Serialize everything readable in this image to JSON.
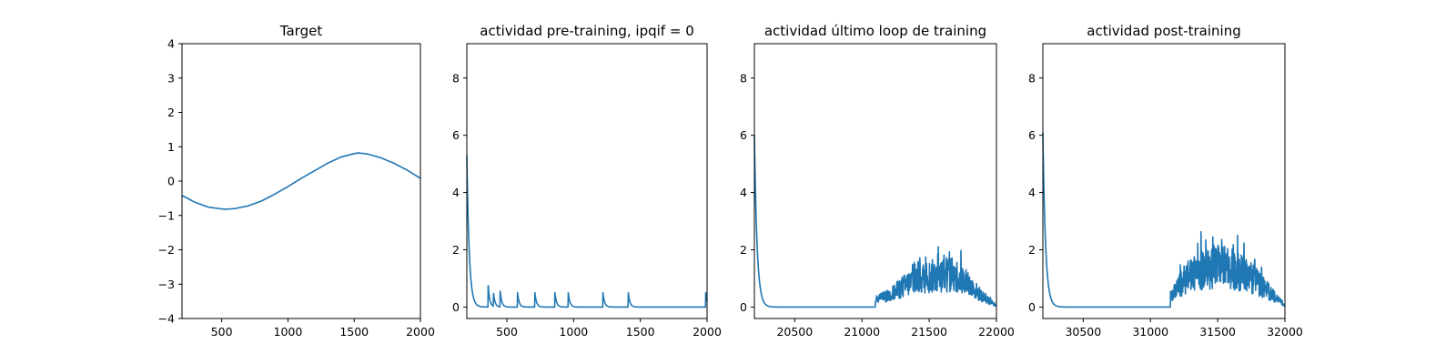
{
  "chart_data": [
    {
      "type": "line",
      "title": "Target",
      "xlim": [
        200,
        2000
      ],
      "ylim": [
        -4,
        4
      ],
      "xticks": [
        500,
        1000,
        1500,
        2000
      ],
      "yticks": [
        -4,
        -3,
        -2,
        -1,
        0,
        1,
        2,
        3,
        4
      ],
      "series_color": "#1f77b4",
      "x": [
        200,
        300,
        400,
        500,
        530,
        600,
        700,
        800,
        900,
        1000,
        1100,
        1200,
        1300,
        1400,
        1500,
        1530,
        1600,
        1700,
        1800,
        1900,
        2000
      ],
      "y": [
        -0.42,
        -0.62,
        -0.76,
        -0.81,
        -0.82,
        -0.8,
        -0.72,
        -0.58,
        -0.38,
        -0.16,
        0.08,
        0.3,
        0.52,
        0.7,
        0.8,
        0.82,
        0.79,
        0.68,
        0.52,
        0.32,
        0.08
      ]
    },
    {
      "type": "line",
      "title": "actividad pre-training, ipqif = 0",
      "xlim": [
        200,
        2000
      ],
      "ylim": [
        -0.4,
        9.2
      ],
      "xticks": [
        500,
        1000,
        1500,
        2000
      ],
      "yticks": [
        0,
        2,
        4,
        6,
        8
      ],
      "series_color": "#1f77b4",
      "start": {
        "x": 200,
        "peak": 5.3,
        "decay": 18
      },
      "spikes": [
        {
          "x": 360,
          "h": 0.75
        },
        {
          "x": 400,
          "h": 0.45
        },
        {
          "x": 450,
          "h": 0.55
        },
        {
          "x": 580,
          "h": 0.5
        },
        {
          "x": 710,
          "h": 0.5
        },
        {
          "x": 860,
          "h": 0.5
        },
        {
          "x": 960,
          "h": 0.5
        },
        {
          "x": 1220,
          "h": 0.5
        },
        {
          "x": 1410,
          "h": 0.5
        },
        {
          "x": 1990,
          "h": 0.5
        }
      ]
    },
    {
      "type": "line",
      "title": "actividad último loop de training",
      "xlim": [
        20200,
        22000
      ],
      "ylim": [
        -0.4,
        9.2
      ],
      "xticks": [
        20500,
        21000,
        21500,
        22000
      ],
      "yticks": [
        0,
        2,
        4,
        6,
        8
      ],
      "series_color": "#1f77b4",
      "start": {
        "x": 20200,
        "peak": 6.0,
        "decay": 20
      },
      "noisy_region": {
        "from": 21100,
        "to": 22000
      },
      "envelope": {
        "x": [
          21100,
          21200,
          21300,
          21400,
          21500,
          21600,
          21700,
          21800,
          21900,
          22000
        ],
        "y": [
          0.25,
          0.4,
          0.7,
          0.95,
          1.05,
          1.15,
          1.1,
          0.75,
          0.35,
          0.05
        ]
      },
      "peak_value": 1.75
    },
    {
      "type": "line",
      "title": "actividad post-training",
      "xlim": [
        30200,
        32000
      ],
      "ylim": [
        -0.4,
        9.2
      ],
      "xticks": [
        30500,
        31000,
        31500,
        32000
      ],
      "yticks": [
        0,
        2,
        4,
        6,
        8
      ],
      "series_color": "#1f77b4",
      "start": {
        "x": 30200,
        "peak": 6.1,
        "decay": 20
      },
      "noisy_region": {
        "from": 31150,
        "to": 32000
      },
      "envelope": {
        "x": [
          31150,
          31250,
          31350,
          31450,
          31550,
          31650,
          31750,
          31850,
          31950,
          32000
        ],
        "y": [
          0.35,
          0.95,
          1.25,
          1.4,
          1.4,
          1.25,
          1.05,
          0.65,
          0.25,
          0.05
        ]
      },
      "peak_value": 2.0
    }
  ]
}
